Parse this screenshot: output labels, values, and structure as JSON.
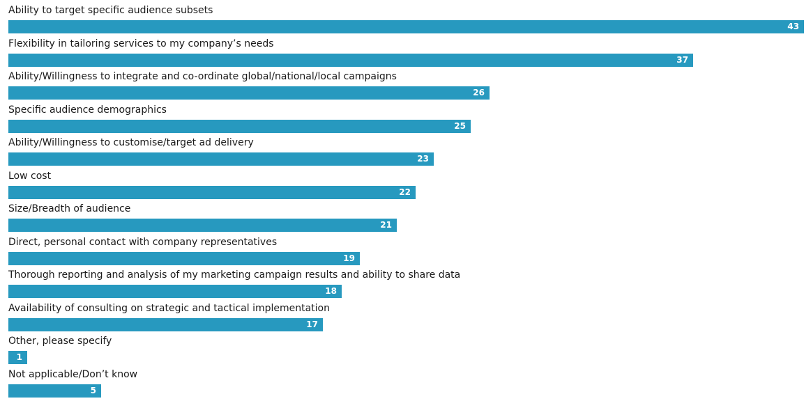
{
  "chart_data": {
    "type": "bar",
    "orientation": "horizontal",
    "bar_color": "#2799bf",
    "value_label_color": "#ffffff",
    "xlim": [
      0,
      43
    ],
    "categories": [
      "Ability to target specific audience subsets",
      "Flexibility in tailoring services to my company’s needs",
      "Ability/Willingness to integrate and co-ordinate global/national/local campaigns",
      "Specific audience demographics",
      "Ability/Willingness to customise/target ad delivery",
      "Low cost",
      "Size/Breadth of audience",
      "Direct, personal contact with company representatives",
      "Thorough reporting and analysis of my marketing campaign results and ability to share data",
      "Availability of consulting on strategic and tactical implementation",
      "Other, please specify",
      "Not applicable/Don’t know"
    ],
    "values": [
      43,
      37,
      26,
      25,
      23,
      22,
      21,
      19,
      18,
      17,
      1,
      5
    ],
    "data_labels": [
      "43",
      "37",
      "26",
      "25",
      "23",
      "22",
      "21",
      "19",
      "18",
      "17",
      "1",
      "5"
    ]
  }
}
